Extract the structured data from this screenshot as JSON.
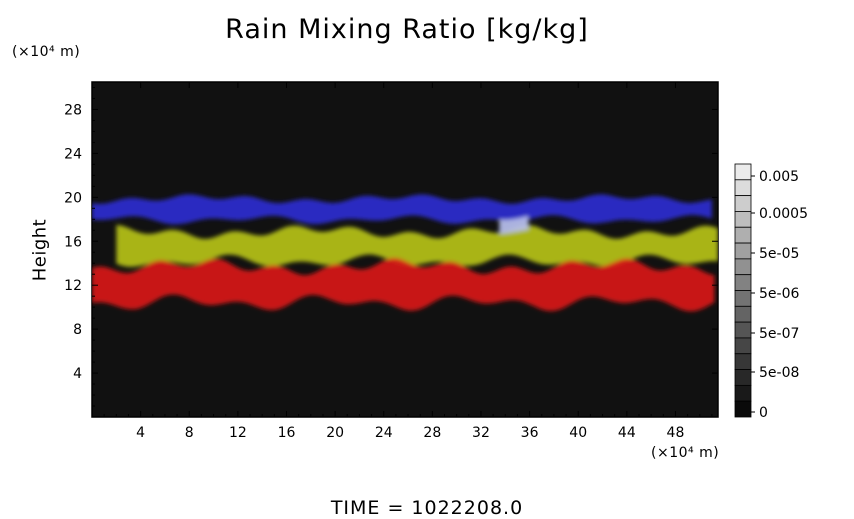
{
  "chart_data": {
    "type": "heatmap",
    "title": "Rain Mixing Ratio [kg/kg]",
    "ylabel": "Height",
    "xlabel": "",
    "x_unit": "(×10⁴ m)",
    "y_unit": "(×10⁴ m)",
    "xlim": [
      0,
      51.5
    ],
    "ylim": [
      0,
      30.5
    ],
    "x_ticks": [
      4,
      8,
      12,
      16,
      20,
      24,
      28,
      32,
      36,
      40,
      44,
      48
    ],
    "y_ticks": [
      4,
      8,
      12,
      16,
      20,
      24,
      28
    ],
    "colorbar": {
      "labels": [
        "0.005",
        "0.0005",
        "5e-05",
        "5e-06",
        "5e-07",
        "5e-08",
        "0"
      ],
      "levels": 16
    },
    "background_color": "#111111",
    "layers": [
      {
        "name": "upper layer",
        "color": "#2a2ad0",
        "y_range": [
          17.5,
          20.3
        ],
        "x_extent": [
          0,
          51.5
        ]
      },
      {
        "name": "middle layer",
        "color": "#b6c21a",
        "y_range": [
          13.5,
          17.5
        ],
        "x_extent": [
          2,
          51.5
        ]
      },
      {
        "name": "lower layer",
        "color": "#d81a1a",
        "y_range": [
          9.6,
          14.5
        ],
        "x_extent": [
          0,
          51.5
        ]
      },
      {
        "name": "peak core",
        "color": "#b8c0ef",
        "y_range": [
          16.5,
          18.5
        ],
        "x_extent": [
          33.5,
          36
        ]
      }
    ]
  },
  "footer": "TIME = 1022208.0"
}
